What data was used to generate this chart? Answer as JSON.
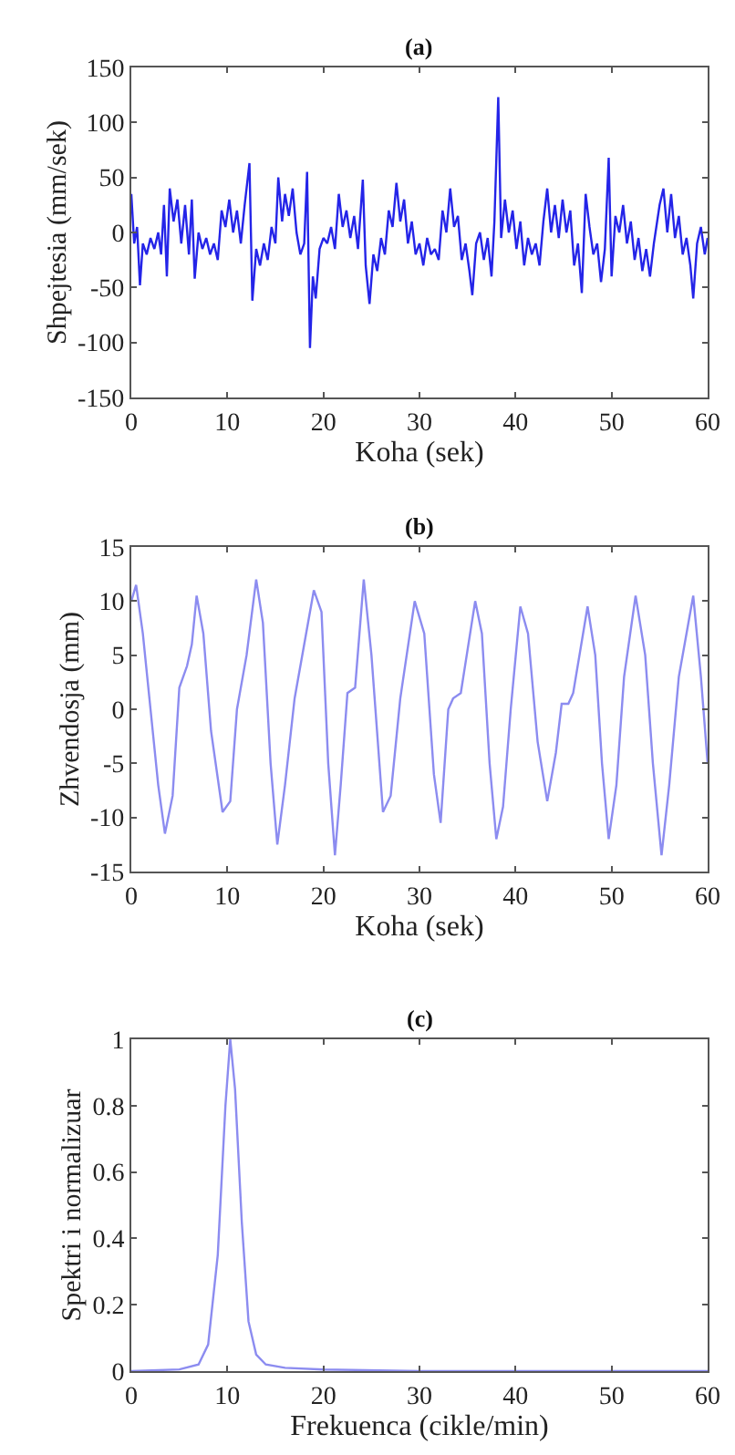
{
  "chart_data": [
    {
      "type": "line",
      "title": "(a)",
      "xlabel": "Koha (sek)",
      "ylabel": "Shpejtesia (mm/sek)",
      "xlim": [
        0,
        60
      ],
      "ylim": [
        -150,
        150
      ],
      "xticks": [
        0,
        10,
        20,
        30,
        40,
        50,
        60
      ],
      "yticks": [
        -150,
        -100,
        -50,
        0,
        50,
        100,
        150
      ],
      "x": [
        0,
        0.3,
        0.6,
        0.9,
        1.2,
        1.6,
        2.0,
        2.4,
        2.8,
        3.1,
        3.4,
        3.7,
        4.0,
        4.4,
        4.8,
        5.2,
        5.6,
        6.0,
        6.3,
        6.6,
        7.0,
        7.4,
        7.8,
        8.2,
        8.6,
        9.0,
        9.4,
        9.8,
        10.2,
        10.6,
        11.0,
        11.4,
        11.8,
        12.3,
        12.6,
        13.0,
        13.4,
        13.8,
        14.2,
        14.6,
        15.0,
        15.3,
        15.7,
        16.0,
        16.4,
        16.8,
        17.2,
        17.6,
        18.0,
        18.3,
        18.6,
        18.9,
        19.2,
        19.6,
        20.0,
        20.4,
        20.8,
        21.2,
        21.6,
        22.0,
        22.4,
        22.8,
        23.2,
        23.6,
        24.1,
        24.4,
        24.8,
        25.2,
        25.6,
        26.0,
        26.4,
        26.8,
        27.2,
        27.6,
        28.0,
        28.4,
        28.8,
        29.2,
        29.6,
        30.0,
        30.4,
        30.8,
        31.2,
        31.6,
        32.0,
        32.4,
        32.8,
        33.2,
        33.6,
        34.0,
        34.4,
        34.8,
        35.2,
        35.5,
        35.9,
        36.3,
        36.7,
        37.1,
        37.5,
        37.8,
        38.2,
        38.5,
        38.9,
        39.3,
        39.7,
        40.1,
        40.5,
        40.9,
        41.3,
        41.7,
        42.1,
        42.5,
        42.9,
        43.3,
        43.7,
        44.1,
        44.5,
        44.9,
        45.3,
        45.7,
        46.1,
        46.5,
        46.9,
        47.3,
        47.7,
        48.1,
        48.5,
        48.9,
        49.3,
        49.7,
        50.0,
        50.4,
        50.8,
        51.2,
        51.6,
        52.0,
        52.4,
        52.8,
        53.2,
        53.6,
        54.0,
        54.4,
        55.0,
        55.4,
        55.8,
        56.2,
        56.6,
        57.0,
        57.4,
        57.8,
        58.2,
        58.5,
        58.9,
        59.3,
        59.7,
        60
      ],
      "series": [
        {
          "color": "#2424e8",
          "values": [
            35,
            -10,
            5,
            -48,
            -10,
            -20,
            -5,
            -15,
            0,
            -20,
            25,
            -40,
            40,
            10,
            30,
            -10,
            25,
            -20,
            30,
            -42,
            0,
            -15,
            -5,
            -20,
            -10,
            -25,
            20,
            5,
            30,
            0,
            20,
            -10,
            25,
            63,
            -62,
            -15,
            -30,
            -10,
            -25,
            5,
            -10,
            50,
            10,
            35,
            15,
            40,
            0,
            -20,
            -10,
            55,
            -105,
            -40,
            -60,
            -15,
            -5,
            -10,
            5,
            -15,
            35,
            5,
            20,
            -5,
            15,
            -15,
            48,
            -30,
            -65,
            -20,
            -35,
            -5,
            -20,
            20,
            5,
            45,
            10,
            30,
            -10,
            10,
            -20,
            -10,
            -30,
            -5,
            -20,
            -15,
            -25,
            20,
            0,
            40,
            5,
            15,
            -25,
            -10,
            -35,
            -57,
            -10,
            0,
            -25,
            -5,
            -40,
            10,
            123,
            -5,
            30,
            0,
            20,
            -15,
            10,
            -30,
            -5,
            -20,
            -10,
            -30,
            10,
            40,
            0,
            25,
            -5,
            30,
            0,
            20,
            -30,
            -10,
            -55,
            35,
            5,
            -20,
            -10,
            -45,
            -15,
            68,
            -40,
            15,
            0,
            25,
            -10,
            10,
            -25,
            -5,
            -35,
            -15,
            -40,
            -10,
            25,
            40,
            0,
            35,
            -5,
            15,
            -20,
            -5,
            -30,
            -60,
            -10,
            5,
            -20,
            -5
          ]
        }
      ]
    },
    {
      "type": "line",
      "title": "(b)",
      "xlabel": "Koha (sek)",
      "ylabel": "Zhvendosja (mm)",
      "xlim": [
        0,
        60
      ],
      "ylim": [
        -15,
        15
      ],
      "xticks": [
        0,
        10,
        20,
        30,
        40,
        50,
        60
      ],
      "yticks": [
        -15,
        -10,
        -5,
        0,
        5,
        10,
        15
      ],
      "x": [
        0,
        0.5,
        1.2,
        2,
        2.8,
        3.5,
        4.3,
        5,
        5.8,
        6.3,
        6.8,
        7.5,
        8.3,
        9.5,
        10.3,
        11,
        12,
        13,
        13.7,
        14.5,
        15.2,
        16,
        17,
        18,
        19,
        19.8,
        20.5,
        21.2,
        21.8,
        22.5,
        23.3,
        24.2,
        25,
        26.2,
        27,
        28,
        29.5,
        30.5,
        31.5,
        32.2,
        33,
        33.5,
        34.3,
        35.8,
        36.5,
        37.3,
        38,
        38.7,
        39.5,
        40.5,
        41.3,
        42.3,
        43.3,
        44.2,
        44.8,
        45.5,
        46,
        47.5,
        48.3,
        49,
        49.7,
        50.5,
        51.3,
        52.5,
        53.5,
        54.3,
        55.2,
        56,
        57,
        58,
        58.5,
        59.3,
        60
      ],
      "series": [
        {
          "color": "#8c8cf0",
          "values": [
            10,
            11.5,
            7,
            0,
            -7,
            -11.5,
            -8,
            2,
            4,
            6,
            10.5,
            7,
            -2,
            -9.5,
            -8.5,
            0,
            5,
            12,
            8,
            -5,
            -12.5,
            -7,
            1,
            6,
            11,
            9,
            -5,
            -13.5,
            -7,
            1.5,
            2,
            12,
            5,
            -9.5,
            -8,
            1,
            10,
            7,
            -6,
            -10.5,
            0,
            1,
            1.5,
            10,
            7,
            -5,
            -12,
            -9,
            0,
            9.5,
            7,
            -3,
            -8.5,
            -4,
            0.5,
            0.5,
            1.5,
            9.5,
            5,
            -5,
            -12,
            -7,
            3,
            10.5,
            5,
            -5,
            -13.5,
            -7,
            3,
            8,
            10.5,
            3,
            -5
          ]
        }
      ]
    },
    {
      "type": "line",
      "title": "(c)",
      "xlabel": "Frekuenca (cikle/min)",
      "ylabel": "Spektri i normalizuar",
      "xlim": [
        0,
        60
      ],
      "ylim": [
        0,
        1
      ],
      "xticks": [
        0,
        10,
        20,
        30,
        40,
        50,
        60
      ],
      "yticks": [
        0,
        0.2,
        0.4,
        0.6,
        0.8,
        1
      ],
      "x": [
        0,
        5,
        7,
        8,
        9,
        9.8,
        10.3,
        10.8,
        11.5,
        12.2,
        13,
        14,
        16,
        20,
        30,
        60
      ],
      "series": [
        {
          "color": "#8c8cf0",
          "values": [
            0,
            0.005,
            0.02,
            0.08,
            0.35,
            0.8,
            1,
            0.85,
            0.45,
            0.15,
            0.05,
            0.02,
            0.01,
            0.005,
            0,
            0
          ]
        }
      ]
    }
  ]
}
